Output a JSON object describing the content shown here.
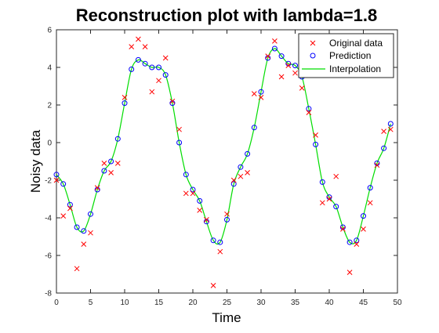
{
  "chart_data": {
    "type": "scatter",
    "title": "Reconstruction plot with lambda=1.8",
    "xlabel": "Time",
    "ylabel": "Noisy data",
    "xlim": [
      0,
      50
    ],
    "ylim": [
      -8,
      6
    ],
    "xticks": [
      0,
      5,
      10,
      15,
      20,
      25,
      30,
      35,
      40,
      45,
      50
    ],
    "yticks": [
      -8,
      -6,
      -4,
      -2,
      0,
      2,
      4,
      6
    ],
    "grid": false,
    "legend_position": "top-right",
    "colors": {
      "original": "#ff0000",
      "prediction": "#0000ff",
      "interpolation": "#00dd00"
    },
    "series": [
      {
        "name": "Original data",
        "marker": "x",
        "x": [
          0,
          1,
          2,
          3,
          4,
          5,
          6,
          7,
          8,
          9,
          10,
          11,
          12,
          13,
          14,
          15,
          16,
          17,
          18,
          19,
          20,
          21,
          22,
          23,
          24,
          25,
          26,
          27,
          28,
          29,
          30,
          31,
          32,
          33,
          34,
          35,
          36,
          37,
          38,
          39,
          40,
          41,
          42,
          43,
          44,
          45,
          46,
          47,
          48,
          49
        ],
        "y": [
          -2.0,
          -3.9,
          -3.5,
          -6.7,
          -5.4,
          -4.8,
          -2.4,
          -1.1,
          -1.6,
          -1.1,
          2.4,
          5.1,
          5.5,
          5.1,
          2.7,
          3.3,
          4.5,
          2.2,
          0.7,
          -2.7,
          -2.7,
          -3.6,
          -4.1,
          -7.6,
          -5.8,
          -3.8,
          -2.0,
          -1.8,
          -1.6,
          2.6,
          2.4,
          4.6,
          5.4,
          3.5,
          4.1,
          3.7,
          2.9,
          1.6,
          0.4,
          -3.2,
          -3.0,
          -1.8,
          -4.6,
          -6.9,
          -5.4,
          -4.6,
          -3.2,
          -1.2,
          0.6,
          0.7
        ]
      },
      {
        "name": "Prediction",
        "marker": "o",
        "x": [
          0,
          1,
          2,
          3,
          4,
          5,
          6,
          7,
          8,
          9,
          10,
          11,
          12,
          13,
          14,
          15,
          16,
          17,
          18,
          19,
          20,
          21,
          22,
          23,
          24,
          25,
          26,
          27,
          28,
          29,
          30,
          31,
          32,
          33,
          34,
          35,
          36,
          37,
          38,
          39,
          40,
          41,
          42,
          43,
          44,
          45,
          46,
          47,
          48,
          49
        ],
        "y": [
          -1.7,
          -2.2,
          -3.3,
          -4.5,
          -4.7,
          -3.8,
          -2.5,
          -1.5,
          -1.0,
          0.2,
          2.1,
          3.9,
          4.4,
          4.2,
          4.0,
          4.0,
          3.6,
          2.1,
          0.0,
          -1.7,
          -2.5,
          -3.1,
          -4.2,
          -5.2,
          -5.3,
          -4.1,
          -2.2,
          -1.3,
          -0.6,
          0.8,
          2.7,
          4.5,
          5.0,
          4.6,
          4.2,
          4.1,
          3.5,
          1.8,
          -0.1,
          -2.1,
          -2.9,
          -3.4,
          -4.5,
          -5.3,
          -5.2,
          -3.9,
          -2.4,
          -1.1,
          -0.3,
          1.0
        ]
      },
      {
        "name": "Interpolation",
        "marker": "line",
        "x": [
          0,
          1,
          2,
          3,
          4,
          5,
          6,
          7,
          8,
          9,
          10,
          11,
          12,
          13,
          14,
          15,
          16,
          17,
          18,
          19,
          20,
          21,
          22,
          23,
          24,
          25,
          26,
          27,
          28,
          29,
          30,
          31,
          32,
          33,
          34,
          35,
          36,
          37,
          38,
          39,
          40,
          41,
          42,
          43,
          44,
          45,
          46,
          47,
          48,
          49
        ],
        "y": [
          -1.7,
          -2.2,
          -3.3,
          -4.5,
          -4.7,
          -3.8,
          -2.5,
          -1.5,
          -1.0,
          0.2,
          2.1,
          3.9,
          4.4,
          4.2,
          4.0,
          4.0,
          3.6,
          2.1,
          0.0,
          -1.7,
          -2.5,
          -3.1,
          -4.2,
          -5.2,
          -5.3,
          -4.1,
          -2.2,
          -1.3,
          -0.6,
          0.8,
          2.7,
          4.5,
          5.0,
          4.6,
          4.2,
          4.1,
          3.5,
          1.8,
          -0.1,
          -2.1,
          -2.9,
          -3.4,
          -4.5,
          -5.3,
          -5.2,
          -3.9,
          -2.4,
          -1.1,
          -0.3,
          1.0
        ]
      }
    ]
  }
}
